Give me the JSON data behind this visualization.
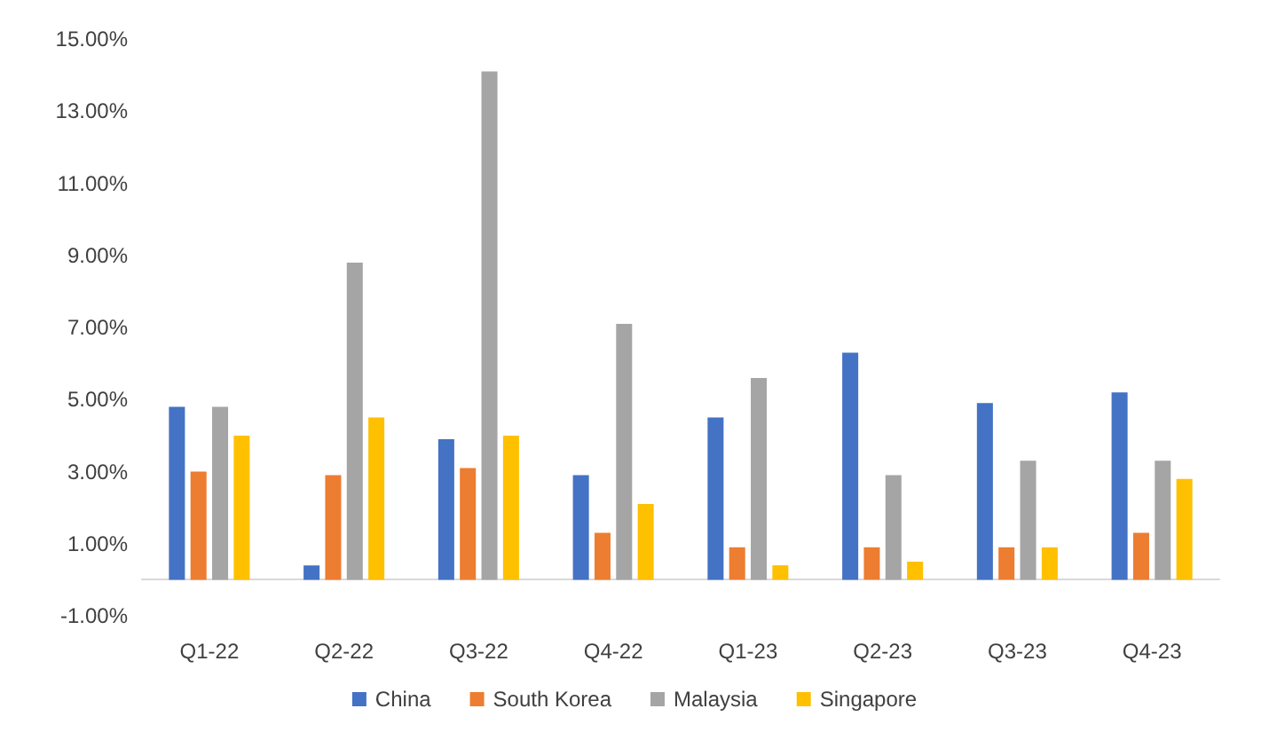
{
  "chart_data": {
    "type": "bar",
    "categories": [
      "Q1-22",
      "Q2-22",
      "Q3-22",
      "Q4-22",
      "Q1-23",
      "Q2-23",
      "Q3-23",
      "Q4-23"
    ],
    "series": [
      {
        "name": "China",
        "color": "#4472c4",
        "values": [
          4.8,
          0.4,
          3.9,
          2.9,
          4.5,
          6.3,
          4.9,
          5.2
        ]
      },
      {
        "name": "South Korea",
        "color": "#ed7d31",
        "values": [
          3.0,
          2.9,
          3.1,
          1.3,
          0.9,
          0.9,
          0.9,
          1.3
        ]
      },
      {
        "name": "Malaysia",
        "color": "#a5a5a5",
        "values": [
          4.8,
          8.8,
          14.1,
          7.1,
          5.6,
          2.9,
          3.3,
          3.3
        ]
      },
      {
        "name": "Singapore",
        "color": "#ffc000",
        "values": [
          4.0,
          4.5,
          4.0,
          2.1,
          0.4,
          0.5,
          0.9,
          2.8
        ]
      }
    ],
    "ylim": [
      -1,
      15
    ],
    "yticks": [
      {
        "value": -1,
        "label": "-1.00%"
      },
      {
        "value": 1,
        "label": "1.00%"
      },
      {
        "value": 3,
        "label": "3.00%"
      },
      {
        "value": 5,
        "label": "5.00%"
      },
      {
        "value": 7,
        "label": "7.00%"
      },
      {
        "value": 9,
        "label": "9.00%"
      },
      {
        "value": 11,
        "label": "11.00%"
      },
      {
        "value": 13,
        "label": "13.00%"
      },
      {
        "value": 15,
        "label": "15.00%"
      }
    ],
    "grid": false,
    "legend": "bottom"
  }
}
